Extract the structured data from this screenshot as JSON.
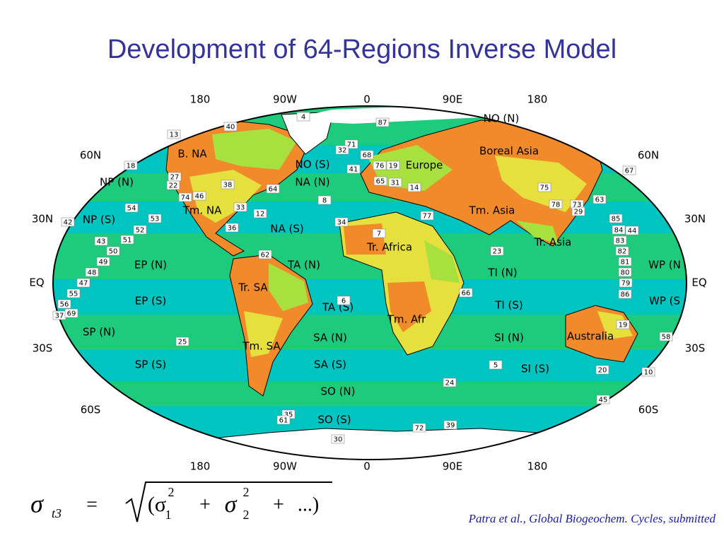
{
  "title": "Development of 64-Regions Inverse Model",
  "map": {
    "top_axis": [
      "180",
      "90W",
      "0",
      "90E",
      "180"
    ],
    "bottom_axis": [
      "180",
      "90W",
      "0",
      "90E",
      "180"
    ],
    "left_axis": [
      "60N",
      "30N",
      "EQ",
      "30S",
      "60S"
    ],
    "right_axis": [
      "60N",
      "30N",
      "EQ",
      "30S",
      "60S"
    ],
    "regions": [
      "NO (N)",
      "Boreal Asia",
      "B. NA",
      "NO (S)",
      "Europe",
      "NP (N)",
      "NA (N)",
      "Tm. NA",
      "Tm. Asia",
      "NP (S)",
      "NA (S)",
      "Tr. Africa",
      "Tr. Asia",
      "EP (N)",
      "TA (N)",
      "TI (N)",
      "WP (N",
      "Tr. SA",
      "EP (S)",
      "TA (S)",
      "TI (S)",
      "WP (S",
      "Tm. Afr",
      "SP (N)",
      "SA (N)",
      "SI (N)",
      "Australia",
      "Tm. SA",
      "SP (S)",
      "SA (S)",
      "SI (S)",
      "SO (N)",
      "SO (S)"
    ],
    "stations": [
      "4",
      "87",
      "40",
      "13",
      "71",
      "32",
      "68",
      "18",
      "41",
      "76",
      "19",
      "67",
      "27",
      "22",
      "38",
      "64",
      "65",
      "31",
      "14",
      "75",
      "74",
      "46",
      "8",
      "63",
      "54",
      "33",
      "73",
      "29",
      "78",
      "12",
      "53",
      "42",
      "34",
      "77",
      "85",
      "52",
      "36",
      "84",
      "44",
      "43",
      "51",
      "7",
      "83",
      "50",
      "62",
      "23",
      "82",
      "49",
      "81",
      "48",
      "80",
      "47",
      "79",
      "55",
      "66",
      "86",
      "56",
      "6",
      "37",
      "69",
      "19",
      "58",
      "25",
      "5",
      "20",
      "10",
      "24",
      "45",
      "35",
      "61",
      "39",
      "72",
      "30"
    ]
  },
  "formula": {
    "tokens": [
      "σ",
      "t3",
      "=",
      "(σ",
      "2",
      "1",
      "+",
      "σ",
      "2",
      "2",
      "+",
      "...)"
    ]
  },
  "citation": "Patra et al., Global Biogeochem. Cycles, submitted"
}
